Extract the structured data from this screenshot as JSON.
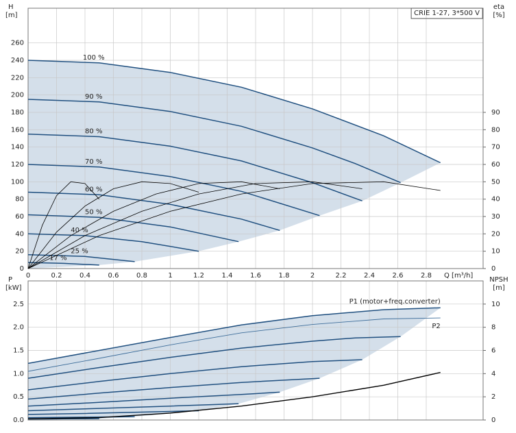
{
  "chart_data": [
    {
      "type": "line",
      "title": "CRIE 1-27, 3*500 V",
      "ylabel": "H",
      "yunit": "[m]",
      "y2label": "eta",
      "y2unit": "[%]",
      "xlabel": "Q [m³/h]",
      "xlim": [
        0,
        3.2
      ],
      "xticks": [
        0,
        0.2,
        0.4,
        0.6,
        0.8,
        1,
        1.2,
        1.4,
        1.6,
        1.8,
        2,
        2.2,
        2.4,
        2.6,
        2.8
      ],
      "ylim": [
        0,
        300
      ],
      "yticks": [
        0,
        20,
        40,
        60,
        80,
        100,
        120,
        140,
        160,
        180,
        200,
        220,
        240,
        260
      ],
      "y2lim": [
        0,
        150
      ],
      "y2ticks": [
        0,
        10,
        20,
        30,
        40,
        50,
        60,
        70,
        80,
        90
      ],
      "grid": true,
      "shade": "#d4dfea",
      "series": [
        {
          "name": "100 %",
          "color": "#1f4f7f",
          "width": 1.5,
          "x": [
            0,
            0.5,
            1,
            1.5,
            2,
            2.5,
            2.9
          ],
          "values": [
            240,
            237,
            226,
            209,
            184,
            153,
            122
          ]
        },
        {
          "name": "90 %",
          "color": "#1f4f7f",
          "width": 1.5,
          "x": [
            0,
            0.5,
            1,
            1.5,
            2,
            2.3,
            2.62
          ],
          "values": [
            195,
            192,
            181,
            164,
            139,
            121,
            99
          ]
        },
        {
          "name": "80 %",
          "color": "#1f4f7f",
          "width": 1.5,
          "x": [
            0,
            0.5,
            1,
            1.5,
            2,
            2.35
          ],
          "values": [
            155,
            152,
            141,
            124,
            99,
            78
          ]
        },
        {
          "name": "70 %",
          "color": "#1f4f7f",
          "width": 1.5,
          "x": [
            0,
            0.5,
            1,
            1.5,
            2.05
          ],
          "values": [
            120,
            117,
            106,
            89,
            61
          ]
        },
        {
          "name": "60 %",
          "color": "#1f4f7f",
          "width": 1.5,
          "x": [
            0,
            0.5,
            1,
            1.5,
            1.77
          ],
          "values": [
            88,
            85,
            74,
            57,
            44
          ]
        },
        {
          "name": "50 %",
          "color": "#1f4f7f",
          "width": 1.5,
          "x": [
            0,
            0.5,
            1,
            1.48
          ],
          "values": [
            62,
            59,
            48,
            31
          ]
        },
        {
          "name": "40 %",
          "color": "#1f4f7f",
          "width": 1.5,
          "x": [
            0,
            0.4,
            0.8,
            1.2
          ],
          "values": [
            40,
            38,
            31,
            20
          ]
        },
        {
          "name": "25 %",
          "color": "#1f4f7f",
          "width": 1.5,
          "x": [
            0,
            0.4,
            0.75
          ],
          "values": [
            16,
            14,
            8
          ]
        },
        {
          "name": "17 %",
          "color": "#1f4f7f",
          "width": 1.5,
          "x": [
            0,
            0.25,
            0.5
          ],
          "values": [
            7,
            6,
            4
          ]
        },
        {
          "axis": "y2",
          "color": "#000000",
          "width": 0.8,
          "x": [
            0,
            0.5,
            1,
            1.5,
            2,
            2.5,
            2.9
          ],
          "values": [
            0,
            19,
            33,
            43,
            49,
            50,
            45
          ]
        },
        {
          "axis": "y2",
          "color": "#000000",
          "width": 0.8,
          "x": [
            0,
            0.4,
            0.8,
            1.2,
            1.6,
            2,
            2.35
          ],
          "values": [
            0,
            19,
            33,
            43,
            49,
            50,
            46
          ]
        },
        {
          "axis": "y2",
          "color": "#000000",
          "width": 0.8,
          "x": [
            0,
            0.3,
            0.6,
            0.9,
            1.2,
            1.5,
            1.77
          ],
          "values": [
            0,
            19,
            33,
            43,
            49,
            50,
            46
          ]
        },
        {
          "axis": "y2",
          "color": "#000000",
          "width": 0.8,
          "x": [
            0,
            0.2,
            0.4,
            0.6,
            0.8,
            1,
            1.2
          ],
          "values": [
            0,
            21,
            36,
            46,
            50,
            49,
            44
          ]
        },
        {
          "axis": "y2",
          "color": "#000000",
          "width": 0.8,
          "x": [
            0,
            0.1,
            0.2,
            0.3,
            0.4,
            0.5
          ],
          "values": [
            0,
            25,
            42,
            50,
            49,
            40
          ]
        }
      ]
    },
    {
      "type": "line",
      "ylabel": "P",
      "yunit": "[kW]",
      "y2label": "NPSH",
      "y2unit": "[m]",
      "xlim": [
        0,
        3.2
      ],
      "xticks": [
        0,
        0.2,
        0.4,
        0.6,
        0.8,
        1,
        1.2,
        1.4,
        1.6,
        1.8,
        2,
        2.2,
        2.4,
        2.6,
        2.8
      ],
      "ylim": [
        0,
        3
      ],
      "yticks": [
        {
          "value": 0,
          "label": "0.0"
        },
        0.5,
        {
          "value": 1,
          "label": "1.0"
        },
        1.5,
        {
          "value": 2,
          "label": "2.0"
        },
        2.5
      ],
      "y2lim": [
        0,
        12
      ],
      "y2ticks": [
        0,
        2,
        4,
        6,
        8,
        10
      ],
      "grid": true,
      "shade": "#d4dfea",
      "series": [
        {
          "name": "P1 (motor+freq.converter)",
          "color": "#1f4f7f",
          "width": 1.5,
          "x": [
            0,
            0.5,
            1,
            1.5,
            2,
            2.5,
            2.9
          ],
          "values": [
            1.22,
            1.5,
            1.78,
            2.05,
            2.25,
            2.38,
            2.42
          ]
        },
        {
          "name": "P2",
          "color": "#3d6d9a",
          "width": 0.9,
          "x": [
            0,
            0.5,
            1,
            1.5,
            2,
            2.5,
            2.9
          ],
          "values": [
            1.05,
            1.33,
            1.62,
            1.88,
            2.06,
            2.18,
            2.2
          ]
        },
        {
          "color": "#1f4f7f",
          "width": 1.5,
          "x": [
            0,
            0.5,
            1,
            1.5,
            2,
            2.3,
            2.62
          ],
          "values": [
            0.9,
            1.13,
            1.35,
            1.55,
            1.7,
            1.77,
            1.8
          ]
        },
        {
          "color": "#1f4f7f",
          "width": 1.5,
          "x": [
            0,
            0.5,
            1,
            1.5,
            2,
            2.35
          ],
          "values": [
            0.65,
            0.83,
            1,
            1.15,
            1.26,
            1.3
          ]
        },
        {
          "color": "#1f4f7f",
          "width": 1.5,
          "x": [
            0,
            0.5,
            1,
            1.5,
            2.05
          ],
          "values": [
            0.45,
            0.58,
            0.7,
            0.81,
            0.9
          ]
        },
        {
          "color": "#1f4f7f",
          "width": 1.5,
          "x": [
            0,
            0.5,
            1,
            1.5,
            1.77
          ],
          "values": [
            0.3,
            0.38,
            0.47,
            0.55,
            0.6
          ]
        },
        {
          "color": "#1f4f7f",
          "width": 1.5,
          "x": [
            0,
            0.5,
            1,
            1.48
          ],
          "values": [
            0.2,
            0.25,
            0.3,
            0.35
          ]
        },
        {
          "color": "#1f4f7f",
          "width": 1.5,
          "x": [
            0,
            0.4,
            0.8,
            1.2
          ],
          "values": [
            0.12,
            0.14,
            0.17,
            0.2
          ]
        },
        {
          "color": "#1f4f7f",
          "width": 1.5,
          "x": [
            0,
            0.4,
            0.75
          ],
          "values": [
            0.05,
            0.06,
            0.07
          ]
        },
        {
          "color": "#1f4f7f",
          "width": 1.5,
          "x": [
            0,
            0.25,
            0.5
          ],
          "values": [
            0.02,
            0.025,
            0.03
          ]
        },
        {
          "axis": "y2",
          "color": "#000000",
          "width": 1.4,
          "x": [
            0,
            0.5,
            1,
            1.5,
            2,
            2.5,
            2.9
          ],
          "values": [
            0.1,
            0.2,
            0.6,
            1.2,
            2,
            3,
            4.1
          ]
        }
      ]
    }
  ]
}
